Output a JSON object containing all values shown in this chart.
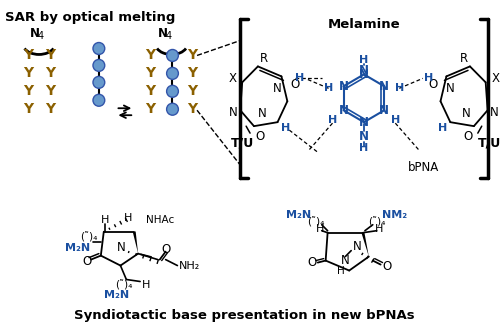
{
  "title": "SAR by optical melting",
  "bottom_title": "Syndiotactic base presentation in new bPNAs",
  "melamine_title": "Melamine",
  "bpna_label": "bPNA",
  "bg_color": "#ffffff",
  "black": "#000000",
  "blue": "#1a4fa0",
  "brown": "#8B6000",
  "fig_w": 5.0,
  "fig_h": 3.25,
  "dpi": 100
}
